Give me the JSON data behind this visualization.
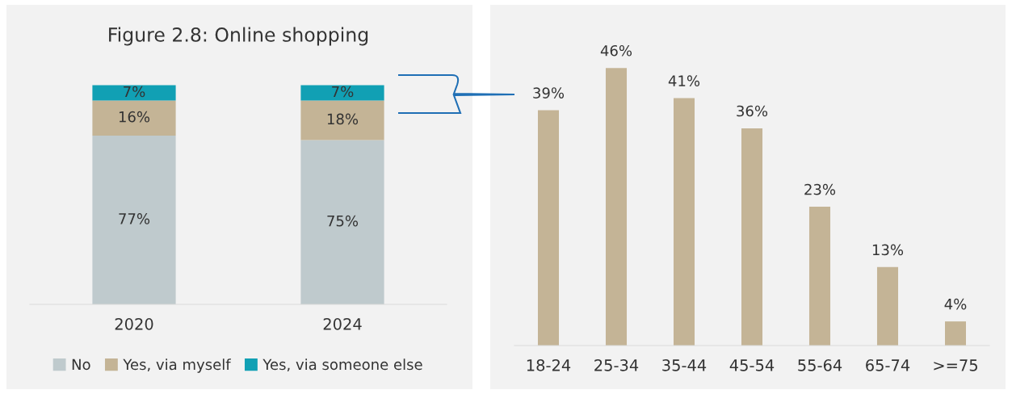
{
  "chart_data": [
    {
      "type": "bar",
      "title": "Figure 2.8: Online shopping",
      "categories": [
        "2020",
        "2024"
      ],
      "stacked": true,
      "legend": "bottom",
      "tick_labels": "x",
      "series": [
        {
          "name": "No",
          "color": "#bfcacd",
          "values": [
            77,
            75
          ],
          "value_labels": [
            "77%",
            "75%"
          ]
        },
        {
          "name": "Yes, via myself",
          "color": "#c4b496",
          "values": [
            16,
            18
          ],
          "value_labels": [
            "16%",
            "18%"
          ]
        },
        {
          "name": "Yes, via someone else",
          "color": "#11a0b4",
          "values": [
            7,
            7
          ],
          "value_labels": [
            "7%",
            "7%"
          ]
        }
      ]
    },
    {
      "type": "bar",
      "categories": [
        "18-24",
        "25-34",
        "35-44",
        "45-54",
        "55-64",
        "65-74",
        ">=75"
      ],
      "tick_labels": "x",
      "color": "#c4b496",
      "values": [
        39,
        46,
        41,
        36,
        23,
        13,
        4
      ],
      "value_labels": [
        "39%",
        "46%",
        "41%",
        "36%",
        "23%",
        "13%",
        "4%"
      ]
    }
  ]
}
